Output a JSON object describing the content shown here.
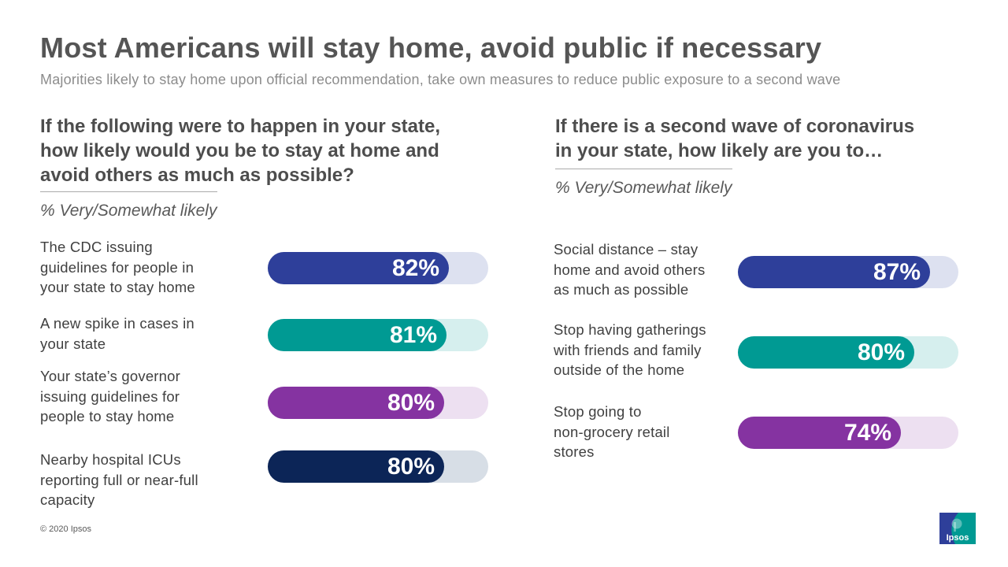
{
  "header": {
    "title": "Most Americans will stay home, avoid public if necessary",
    "subtitle": "Majorities likely to stay home upon official recommendation,  take own measures to reduce public exposure to a second wave"
  },
  "left_panel": {
    "question_lines": [
      "If the following were to happen in your state,",
      "how likely would you be to stay at home and",
      "avoid others as much as possible?"
    ],
    "measure": "% Very/Somewhat likely"
  },
  "right_panel": {
    "question_lines": [
      "If there is a second wave of coronavirus",
      "in your state, how likely are you to…"
    ],
    "measure": "% Very/Somewhat likely"
  },
  "chart_data": [
    {
      "type": "bar",
      "orientation": "horizontal",
      "xlim": [
        0,
        100
      ],
      "categories": [
        "The CDC issuing guidelines for people in your state to stay home",
        "A new spike in cases in your state",
        "Your state’s governor issuing guidelines for people to stay home",
        "Nearby hospital ICUs reporting full or near-full capacity"
      ],
      "category_lines": [
        [
          "The CDC issuing",
          "guidelines for people in",
          "your state to stay home"
        ],
        [
          "A new spike in cases in",
          "your state"
        ],
        [
          "Your state’s governor",
          "issuing guidelines for",
          "people to stay home"
        ],
        [
          "Nearby hospital ICUs",
          "reporting full or near-full",
          "capacity"
        ]
      ],
      "values": [
        82,
        81,
        80,
        80
      ],
      "data_labels": [
        "82%",
        "81%",
        "80%",
        "80%"
      ],
      "colors": [
        "#2e3f9a",
        "#009a93",
        "#8533a1",
        "#0c2557"
      ],
      "track_colors": [
        "#dde1f0",
        "#d6efee",
        "#ede0f1",
        "#d7dee6"
      ]
    },
    {
      "type": "bar",
      "orientation": "horizontal",
      "xlim": [
        0,
        100
      ],
      "categories": [
        "Social distance – stay home and avoid others as much as possible",
        "Stop having gatherings with friends and family outside of the home",
        "Stop going to non-grocery retail stores"
      ],
      "category_lines": [
        [
          "Social distance – stay",
          "home and avoid others",
          "as much  as possible"
        ],
        [
          "Stop having gatherings",
          "with friends and family",
          "outside of the home"
        ],
        [
          "Stop going to",
          "non-grocery retail",
          "stores"
        ]
      ],
      "values": [
        87,
        80,
        74
      ],
      "data_labels": [
        "87%",
        "80%",
        "74%"
      ],
      "colors": [
        "#2e3f9a",
        "#009a93",
        "#8533a1"
      ],
      "track_colors": [
        "#dde1f0",
        "#d6efee",
        "#ede0f1"
      ]
    }
  ],
  "footer": {
    "copyright": "© 2020 Ipsos",
    "logo_text": "Ipsos",
    "logo_color": "#009a93",
    "logo_dark": "#2e3f9a"
  }
}
